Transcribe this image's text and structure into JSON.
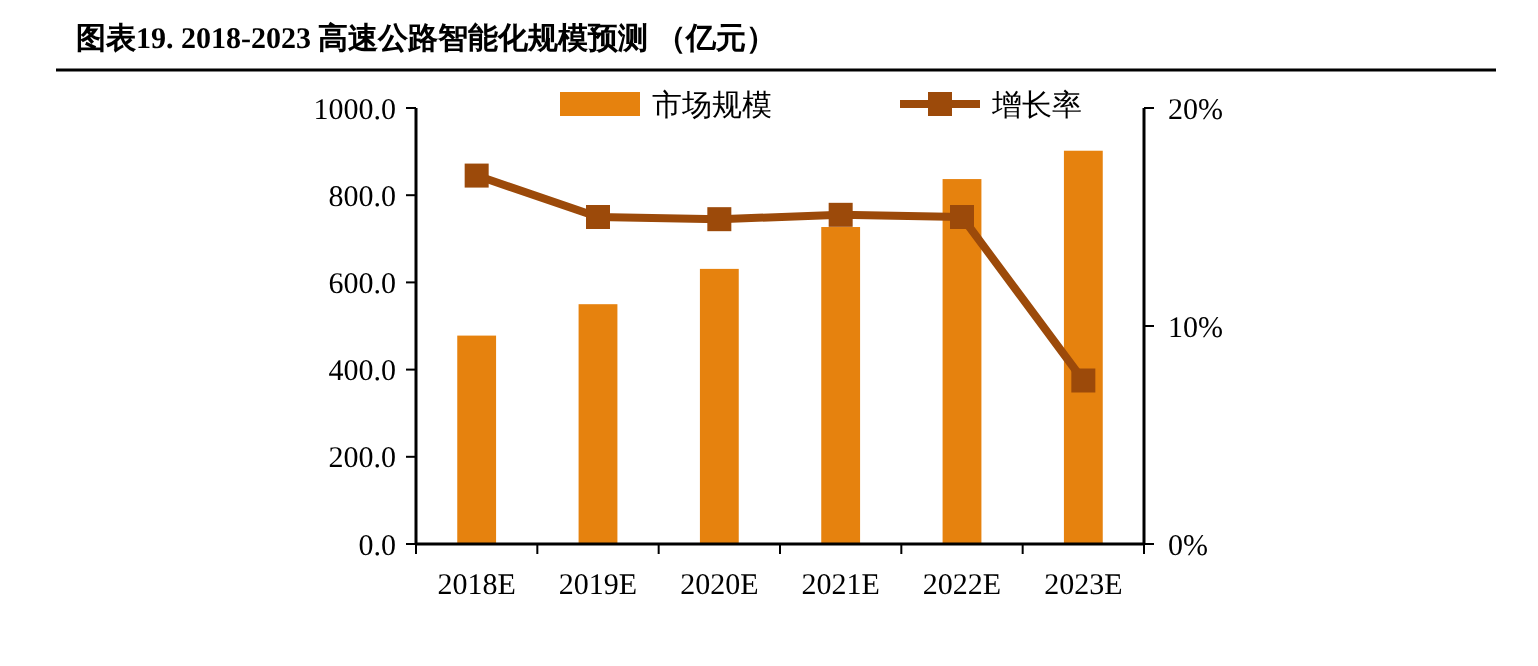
{
  "chart_data": {
    "type": "bar",
    "title": "图表19.  2018-2023 高速公路智能化规模预测  （亿元）",
    "categories": [
      "2018E",
      "2019E",
      "2020E",
      "2021E",
      "2022E",
      "2023E"
    ],
    "series": [
      {
        "name": "市场规模",
        "color": "#e6820e",
        "values": [
          478,
          550,
          631,
          727,
          837,
          902
        ]
      },
      {
        "name": "增长率",
        "type": "line",
        "axis": "y2",
        "color": "#9c4a0a",
        "values": [
          16.9,
          15.0,
          14.9,
          15.1,
          15.0,
          7.5
        ]
      }
    ],
    "ylim": [
      0,
      1000
    ],
    "yticks": [
      {
        "value": 0,
        "label": "0.0"
      },
      {
        "value": 200,
        "label": "200.0"
      },
      {
        "value": 400,
        "label": "400.0"
      },
      {
        "value": 600,
        "label": "600.0"
      },
      {
        "value": 800,
        "label": "800.0"
      },
      {
        "value": 1000,
        "label": "1000.0"
      }
    ],
    "y2lim": [
      0,
      20
    ],
    "y2ticks": [
      {
        "value": 0,
        "label": "0%"
      },
      {
        "value": 10,
        "label": "10%"
      },
      {
        "value": 20,
        "label": "20%"
      }
    ],
    "legend": "top",
    "marker": "square",
    "grid": false
  }
}
